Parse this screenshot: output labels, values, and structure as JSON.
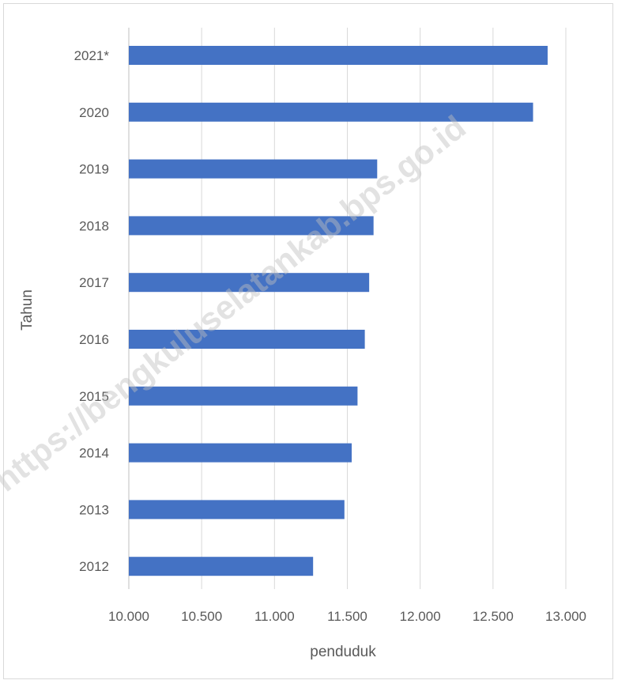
{
  "chart_data": {
    "type": "bar",
    "orientation": "horizontal",
    "categories": [
      "2012",
      "2013",
      "2014",
      "2015",
      "2016",
      "2017",
      "2018",
      "2019",
      "2020",
      "2021*"
    ],
    "values": [
      11265,
      11480,
      11530,
      11570,
      11620,
      11650,
      11680,
      11705,
      12775,
      12875
    ],
    "xlabel": "penduduk",
    "ylabel": "Tahun",
    "xlim": [
      10000,
      13000
    ],
    "xticks": [
      10000,
      10500,
      11000,
      11500,
      12000,
      12500,
      13000
    ],
    "xtick_labels": [
      "10.000",
      "10.500",
      "11.000",
      "11.500",
      "12.000",
      "12.500",
      "13.000"
    ],
    "bar_color": "#4472c4",
    "grid": "vertical",
    "legend": "none",
    "watermark": "https://bengkuluselatankab.bps.go.id"
  }
}
